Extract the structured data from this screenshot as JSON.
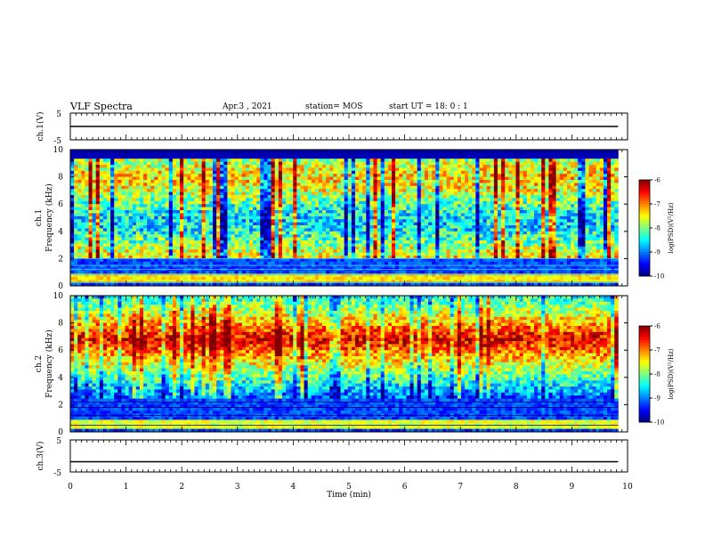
{
  "header": {
    "title": "VLF Spectra",
    "date": "Apr.3 , 2021",
    "station": "station= MOS",
    "start": "start UT = 18: 0 : 1"
  },
  "chart_data": [
    {
      "type": "line",
      "ylabel": "ch.1(V)",
      "ylim": [
        -5,
        5
      ],
      "yticks": [
        "5",
        "-5"
      ],
      "signal_level": 0
    },
    {
      "type": "heatmap",
      "ylabel_line1": "ch.1",
      "ylabel_line2": "Frequency (kHz)",
      "ylim": [
        0,
        10
      ],
      "yticks": [
        "10",
        "8",
        "6",
        "4",
        "2",
        "0"
      ],
      "band_kHz": [
        2,
        9.3
      ],
      "colorbar": {
        "label": "log(PSD)(V²/Hz)",
        "range": [
          -10,
          -6
        ],
        "ticks": [
          "-6",
          "-7",
          "-8",
          "-9",
          "-10"
        ]
      }
    },
    {
      "type": "heatmap",
      "ylabel_line1": "ch.2",
      "ylabel_line2": "Frequency (kHz)",
      "ylim": [
        0,
        10
      ],
      "yticks": [
        "10",
        "8",
        "6",
        "4",
        "2",
        "0"
      ],
      "band_kHz": [
        2.5,
        10
      ],
      "peak_kHz": 6.8,
      "colorbar": {
        "label": "log(PSD)(V²/Hz)",
        "range": [
          -10,
          -6
        ],
        "ticks": [
          "-6",
          "-7",
          "-8",
          "-9",
          "-10"
        ]
      }
    },
    {
      "type": "line",
      "ylabel": "ch.3(V)",
      "ylim": [
        -5,
        5
      ],
      "yticks": [
        "5",
        "-5"
      ],
      "signal_level": -1.8
    }
  ],
  "xaxis": {
    "label": "Time (min)",
    "range": [
      0,
      10
    ],
    "ticks": [
      "0",
      "1",
      "2",
      "3",
      "4",
      "5",
      "6",
      "7",
      "8",
      "9",
      "10"
    ],
    "data_end": 9.83
  },
  "colors": {
    "axis": "#000000",
    "background": "#ffffff"
  }
}
